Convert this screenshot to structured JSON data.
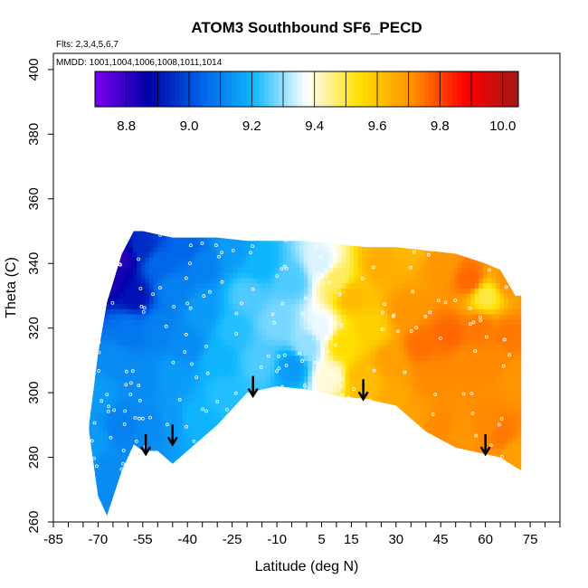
{
  "chart_data": {
    "type": "heatmap",
    "title": "ATOM3 Southbound SF6_PECD",
    "notes": {
      "flights": "Flts: 2,3,4,5,6,7",
      "dates": "MMDD: 1001,1004,1006,1008,1011,1014"
    },
    "xlabel": "Latitude (deg N)",
    "ylabel": "Theta (C)",
    "xlim": [
      -85,
      85
    ],
    "ylim": [
      260,
      405
    ],
    "x_ticks": [
      -85,
      -70,
      -55,
      -40,
      -25,
      -10,
      5,
      15,
      30,
      45,
      60,
      75
    ],
    "x_minor_step": 5,
    "y_ticks": [
      260,
      280,
      300,
      320,
      340,
      360,
      380,
      400
    ],
    "colorbar": {
      "min": 8.7,
      "max": 10.05,
      "ticks": [
        8.8,
        9.0,
        9.2,
        9.4,
        9.6,
        9.8,
        10.0
      ],
      "colors": [
        "#7b00f0",
        "#0000a8",
        "#0060e8",
        "#10b8ff",
        "#ffffff",
        "#ffe000",
        "#ff9000",
        "#ff0000",
        "#a01818"
      ]
    },
    "envelope": {
      "lat": [
        -73,
        -70,
        -67,
        -62,
        -58,
        -55,
        -50,
        -45,
        -40,
        -30,
        -20,
        -10,
        0,
        10,
        20,
        30,
        40,
        50,
        60,
        65,
        70,
        72
      ],
      "theta_top": [
        290,
        312,
        328,
        343,
        350,
        350,
        349,
        348,
        348,
        348,
        347,
        347,
        347,
        346,
        345,
        345,
        344,
        343,
        340,
        338,
        330,
        330
      ],
      "theta_bottom": [
        288,
        268,
        262,
        276,
        284,
        282,
        282,
        278,
        282,
        290,
        300,
        302,
        301,
        299,
        298,
        296,
        288,
        283,
        281,
        280,
        277,
        276
      ]
    },
    "value_samples": [
      {
        "lat": -65,
        "theta": 335,
        "value": 8.84
      },
      {
        "lat": -62,
        "theta": 342,
        "value": 8.82
      },
      {
        "lat": -58,
        "theta": 330,
        "value": 8.9
      },
      {
        "lat": -55,
        "theta": 345,
        "value": 8.95
      },
      {
        "lat": -50,
        "theta": 340,
        "value": 9.05
      },
      {
        "lat": -45,
        "theta": 332,
        "value": 9.1
      },
      {
        "lat": -40,
        "theta": 345,
        "value": 9.05
      },
      {
        "lat": -35,
        "theta": 340,
        "value": 9.1
      },
      {
        "lat": -25,
        "theta": 345,
        "value": 9.15
      },
      {
        "lat": -15,
        "theta": 340,
        "value": 9.2
      },
      {
        "lat": -5,
        "theta": 335,
        "value": 9.25
      },
      {
        "lat": 5,
        "theta": 340,
        "value": 9.35
      },
      {
        "lat": 10,
        "theta": 335,
        "value": 9.48
      },
      {
        "lat": 15,
        "theta": 330,
        "value": 9.62
      },
      {
        "lat": 25,
        "theta": 340,
        "value": 9.65
      },
      {
        "lat": 35,
        "theta": 345,
        "value": 9.63
      },
      {
        "lat": 45,
        "theta": 340,
        "value": 9.7
      },
      {
        "lat": 55,
        "theta": 335,
        "value": 9.76
      },
      {
        "lat": 60,
        "theta": 330,
        "value": 9.5
      },
      {
        "lat": 68,
        "theta": 335,
        "value": 9.7
      },
      {
        "lat": -70,
        "theta": 300,
        "value": 9.15
      },
      {
        "lat": -65,
        "theta": 310,
        "value": 9.12
      },
      {
        "lat": -60,
        "theta": 320,
        "value": 9.08
      },
      {
        "lat": -55,
        "theta": 305,
        "value": 9.12
      },
      {
        "lat": -50,
        "theta": 320,
        "value": 9.1
      },
      {
        "lat": -45,
        "theta": 305,
        "value": 9.15
      },
      {
        "lat": -40,
        "theta": 315,
        "value": 9.12
      },
      {
        "lat": -35,
        "theta": 325,
        "value": 9.15
      },
      {
        "lat": -30,
        "theta": 310,
        "value": 9.2
      },
      {
        "lat": -25,
        "theta": 320,
        "value": 9.22
      },
      {
        "lat": -20,
        "theta": 330,
        "value": 9.25
      },
      {
        "lat": -15,
        "theta": 310,
        "value": 9.25
      },
      {
        "lat": -10,
        "theta": 322,
        "value": 9.28
      },
      {
        "lat": -5,
        "theta": 308,
        "value": 9.15
      },
      {
        "lat": 0,
        "theta": 315,
        "value": 9.3
      },
      {
        "lat": 5,
        "theta": 320,
        "value": 9.36
      },
      {
        "lat": 8,
        "theta": 305,
        "value": 9.4
      },
      {
        "lat": 12,
        "theta": 315,
        "value": 9.55
      },
      {
        "lat": 18,
        "theta": 305,
        "value": 9.62
      },
      {
        "lat": 22,
        "theta": 320,
        "value": 9.58
      },
      {
        "lat": 28,
        "theta": 310,
        "value": 9.68
      },
      {
        "lat": 33,
        "theta": 325,
        "value": 9.7
      },
      {
        "lat": 38,
        "theta": 315,
        "value": 9.75
      },
      {
        "lat": 42,
        "theta": 305,
        "value": 9.72
      },
      {
        "lat": 48,
        "theta": 318,
        "value": 9.76
      },
      {
        "lat": 53,
        "theta": 310,
        "value": 9.72
      },
      {
        "lat": 58,
        "theta": 320,
        "value": 9.74
      },
      {
        "lat": 63,
        "theta": 310,
        "value": 9.72
      },
      {
        "lat": 68,
        "theta": 318,
        "value": 9.74
      },
      {
        "lat": 71,
        "theta": 305,
        "value": 9.7
      },
      {
        "lat": -72,
        "theta": 285,
        "value": 9.15
      },
      {
        "lat": -68,
        "theta": 275,
        "value": 9.12
      },
      {
        "lat": -62,
        "theta": 290,
        "value": 9.1
      },
      {
        "lat": -52,
        "theta": 290,
        "value": 9.12
      },
      {
        "lat": -45,
        "theta": 292,
        "value": 9.15
      },
      {
        "lat": -38,
        "theta": 292,
        "value": 9.2
      },
      {
        "lat": -28,
        "theta": 300,
        "value": 9.22
      },
      {
        "lat": 20,
        "theta": 300,
        "value": 9.62
      },
      {
        "lat": 28,
        "theta": 298,
        "value": 9.66
      },
      {
        "lat": 35,
        "theta": 292,
        "value": 9.68
      },
      {
        "lat": 45,
        "theta": 290,
        "value": 9.72
      },
      {
        "lat": 52,
        "theta": 287,
        "value": 9.7
      },
      {
        "lat": 60,
        "theta": 290,
        "value": 9.72
      },
      {
        "lat": 66,
        "theta": 287,
        "value": 9.74
      },
      {
        "lat": 70,
        "theta": 282,
        "value": 9.68
      }
    ],
    "arrows": [
      {
        "lat": -54,
        "theta": 281
      },
      {
        "lat": -45,
        "theta": 284
      },
      {
        "lat": -18,
        "theta": 299
      },
      {
        "lat": 19,
        "theta": 298
      },
      {
        "lat": 60,
        "theta": 281
      }
    ]
  }
}
